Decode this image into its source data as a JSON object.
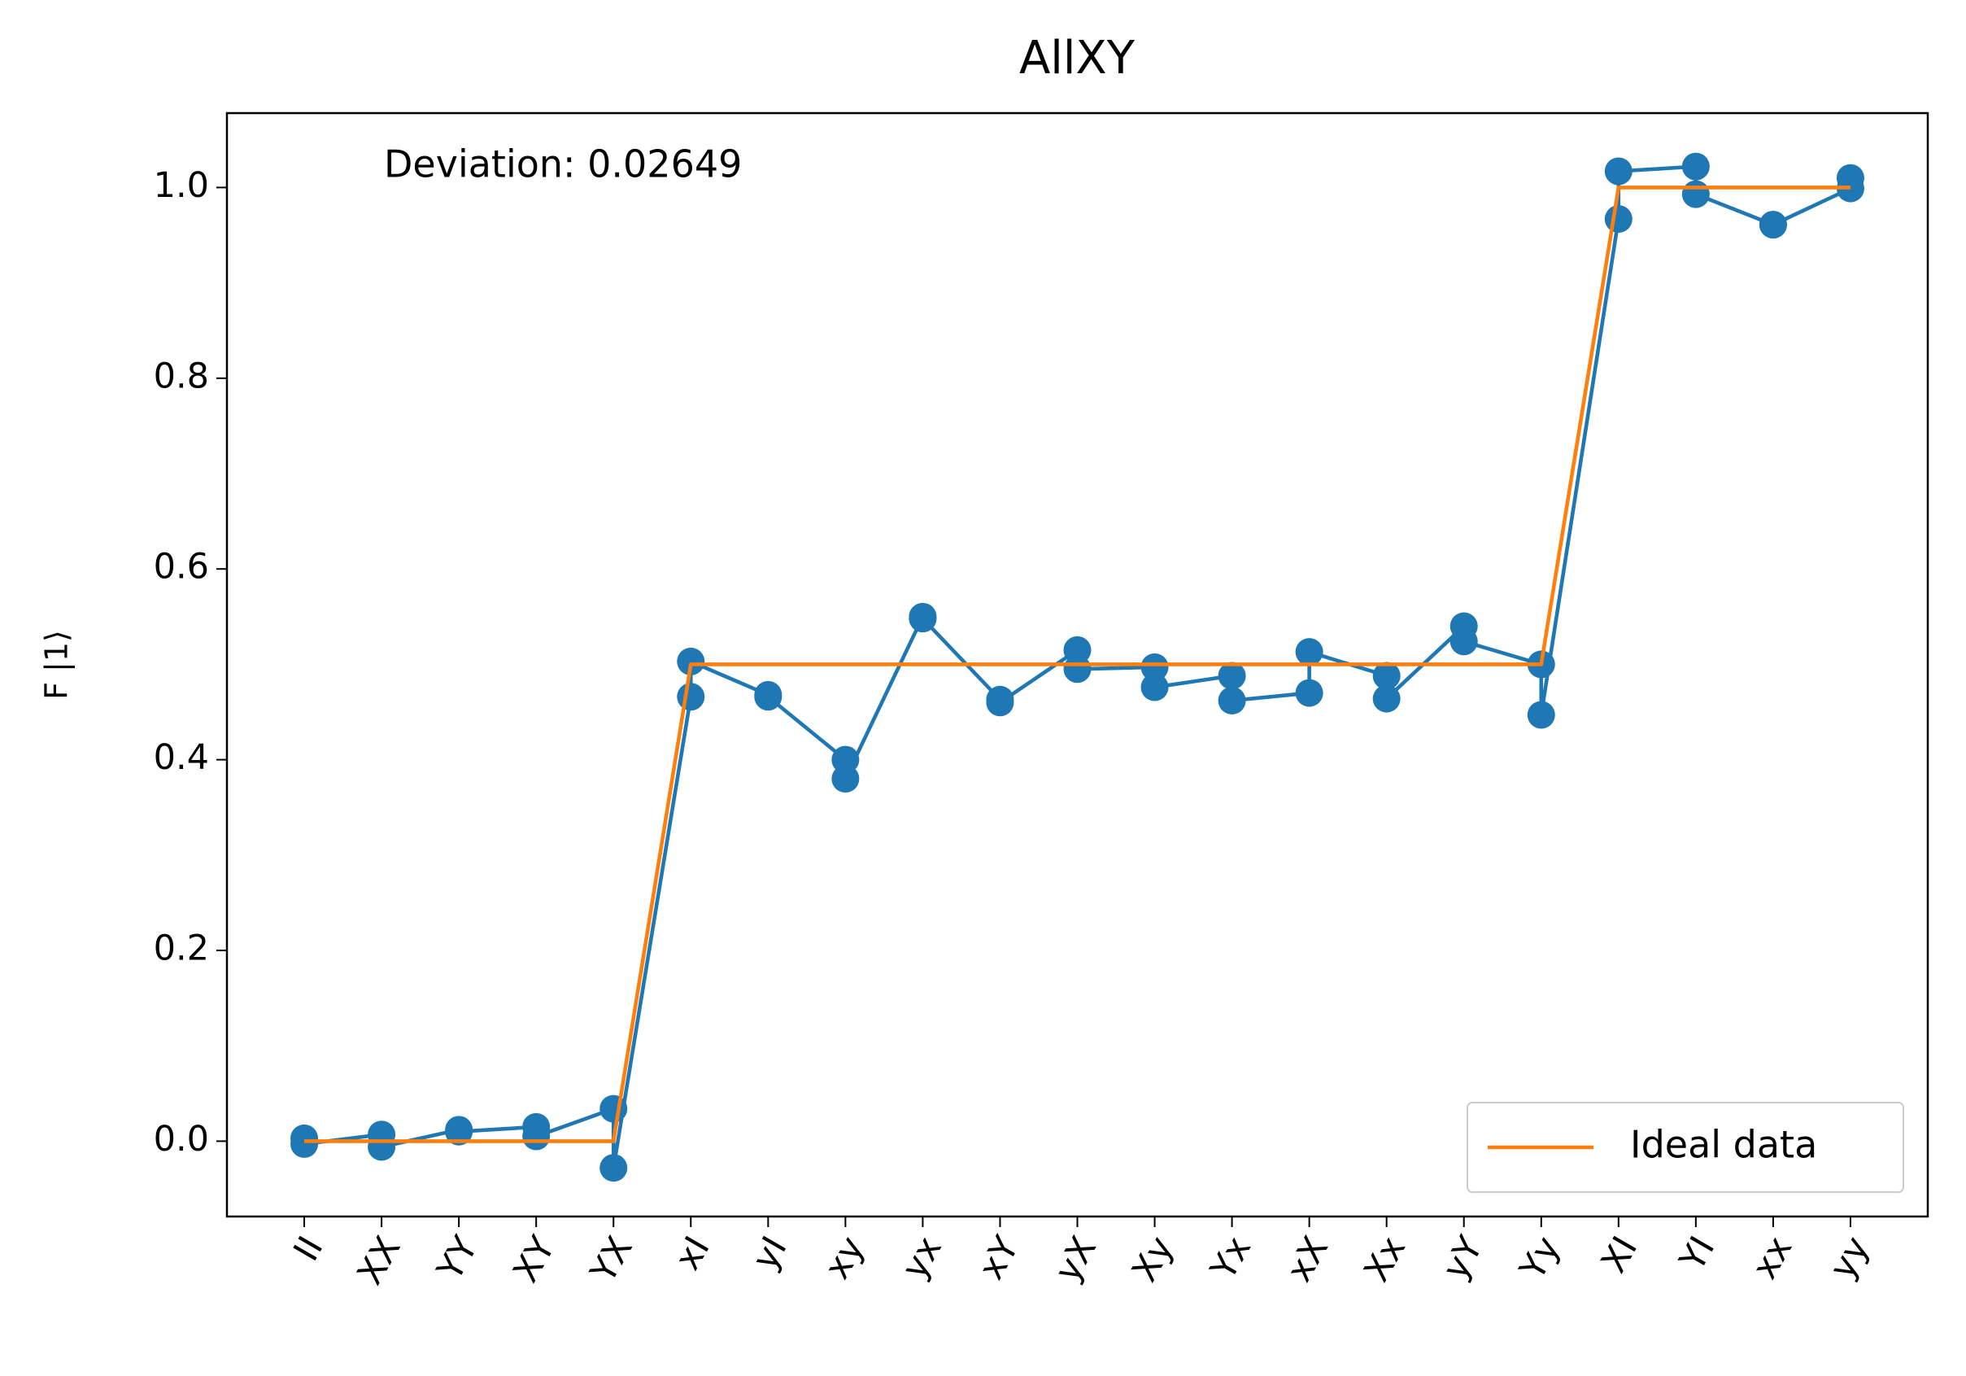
{
  "chart_data": {
    "type": "line",
    "title": "AllXY",
    "y_label": "F |1⟩",
    "annotation": "Deviation: 0.02649",
    "xlim": [
      -1,
      21
    ],
    "ylim": [
      -0.079,
      1.078
    ],
    "yticks": [
      {
        "value": 0,
        "label": "0.0"
      },
      0.2,
      0.4,
      0.6,
      0.8,
      {
        "value": 1,
        "label": "1.0"
      }
    ],
    "xticks": [
      {
        "value": 0,
        "label": "II"
      },
      {
        "value": 1,
        "label": "XX"
      },
      {
        "value": 2,
        "label": "YY"
      },
      {
        "value": 3,
        "label": "XY"
      },
      {
        "value": 4,
        "label": "YX"
      },
      {
        "value": 5,
        "label": "xI"
      },
      {
        "value": 6,
        "label": "yI"
      },
      {
        "value": 7,
        "label": "xy"
      },
      {
        "value": 8,
        "label": "yx"
      },
      {
        "value": 9,
        "label": "xY"
      },
      {
        "value": 10,
        "label": "yX"
      },
      {
        "value": 11,
        "label": "Xy"
      },
      {
        "value": 12,
        "label": "Yx"
      },
      {
        "value": 13,
        "label": "xX"
      },
      {
        "value": 14,
        "label": "Xx"
      },
      {
        "value": 15,
        "label": "yY"
      },
      {
        "value": 16,
        "label": "Yy"
      },
      {
        "value": 17,
        "label": "XI"
      },
      {
        "value": 18,
        "label": "YI"
      },
      {
        "value": 19,
        "label": "xx"
      },
      {
        "value": 20,
        "label": "yy"
      }
    ],
    "legend_position": "lower right",
    "series": [
      {
        "color": "#1f77b4",
        "markers": true,
        "x": [
          0,
          0,
          1,
          1,
          2,
          2,
          3,
          3,
          4,
          4,
          5,
          5,
          6,
          6,
          7,
          7,
          8,
          8,
          9,
          9,
          10,
          10,
          11,
          11,
          12,
          12,
          13,
          13,
          14,
          14,
          15,
          15,
          16,
          16,
          17,
          17,
          18,
          18,
          19,
          19,
          20,
          20
        ],
        "values": [
          0.003,
          -0.003,
          0.007,
          -0.006,
          0.012,
          0.01,
          0.015,
          0.005,
          0.034,
          -0.028,
          0.466,
          0.503,
          0.468,
          0.466,
          0.4,
          0.38,
          0.55,
          0.548,
          0.463,
          0.46,
          0.515,
          0.495,
          0.497,
          0.476,
          0.488,
          0.462,
          0.47,
          0.513,
          0.488,
          0.464,
          0.54,
          0.524,
          0.5,
          0.447,
          0.967,
          1.017,
          1.022,
          0.993,
          0.961,
          0.961,
          0.999,
          1.01
        ]
      },
      {
        "name": "Ideal data",
        "color": "#ff7f0e",
        "markers": false,
        "x": [
          0,
          0,
          1,
          1,
          2,
          2,
          3,
          3,
          4,
          4,
          5,
          5,
          6,
          6,
          7,
          7,
          8,
          8,
          9,
          9,
          10,
          10,
          11,
          11,
          12,
          12,
          13,
          13,
          14,
          14,
          15,
          15,
          16,
          16,
          17,
          17,
          18,
          18,
          19,
          19,
          20,
          20
        ],
        "values": [
          0,
          0,
          0,
          0,
          0,
          0,
          0,
          0,
          0,
          0,
          0.5,
          0.5,
          0.5,
          0.5,
          0.5,
          0.5,
          0.5,
          0.5,
          0.5,
          0.5,
          0.5,
          0.5,
          0.5,
          0.5,
          0.5,
          0.5,
          0.5,
          0.5,
          0.5,
          0.5,
          0.5,
          0.5,
          0.5,
          0.5,
          1,
          1,
          1,
          1,
          1,
          1,
          1,
          1
        ]
      }
    ]
  }
}
